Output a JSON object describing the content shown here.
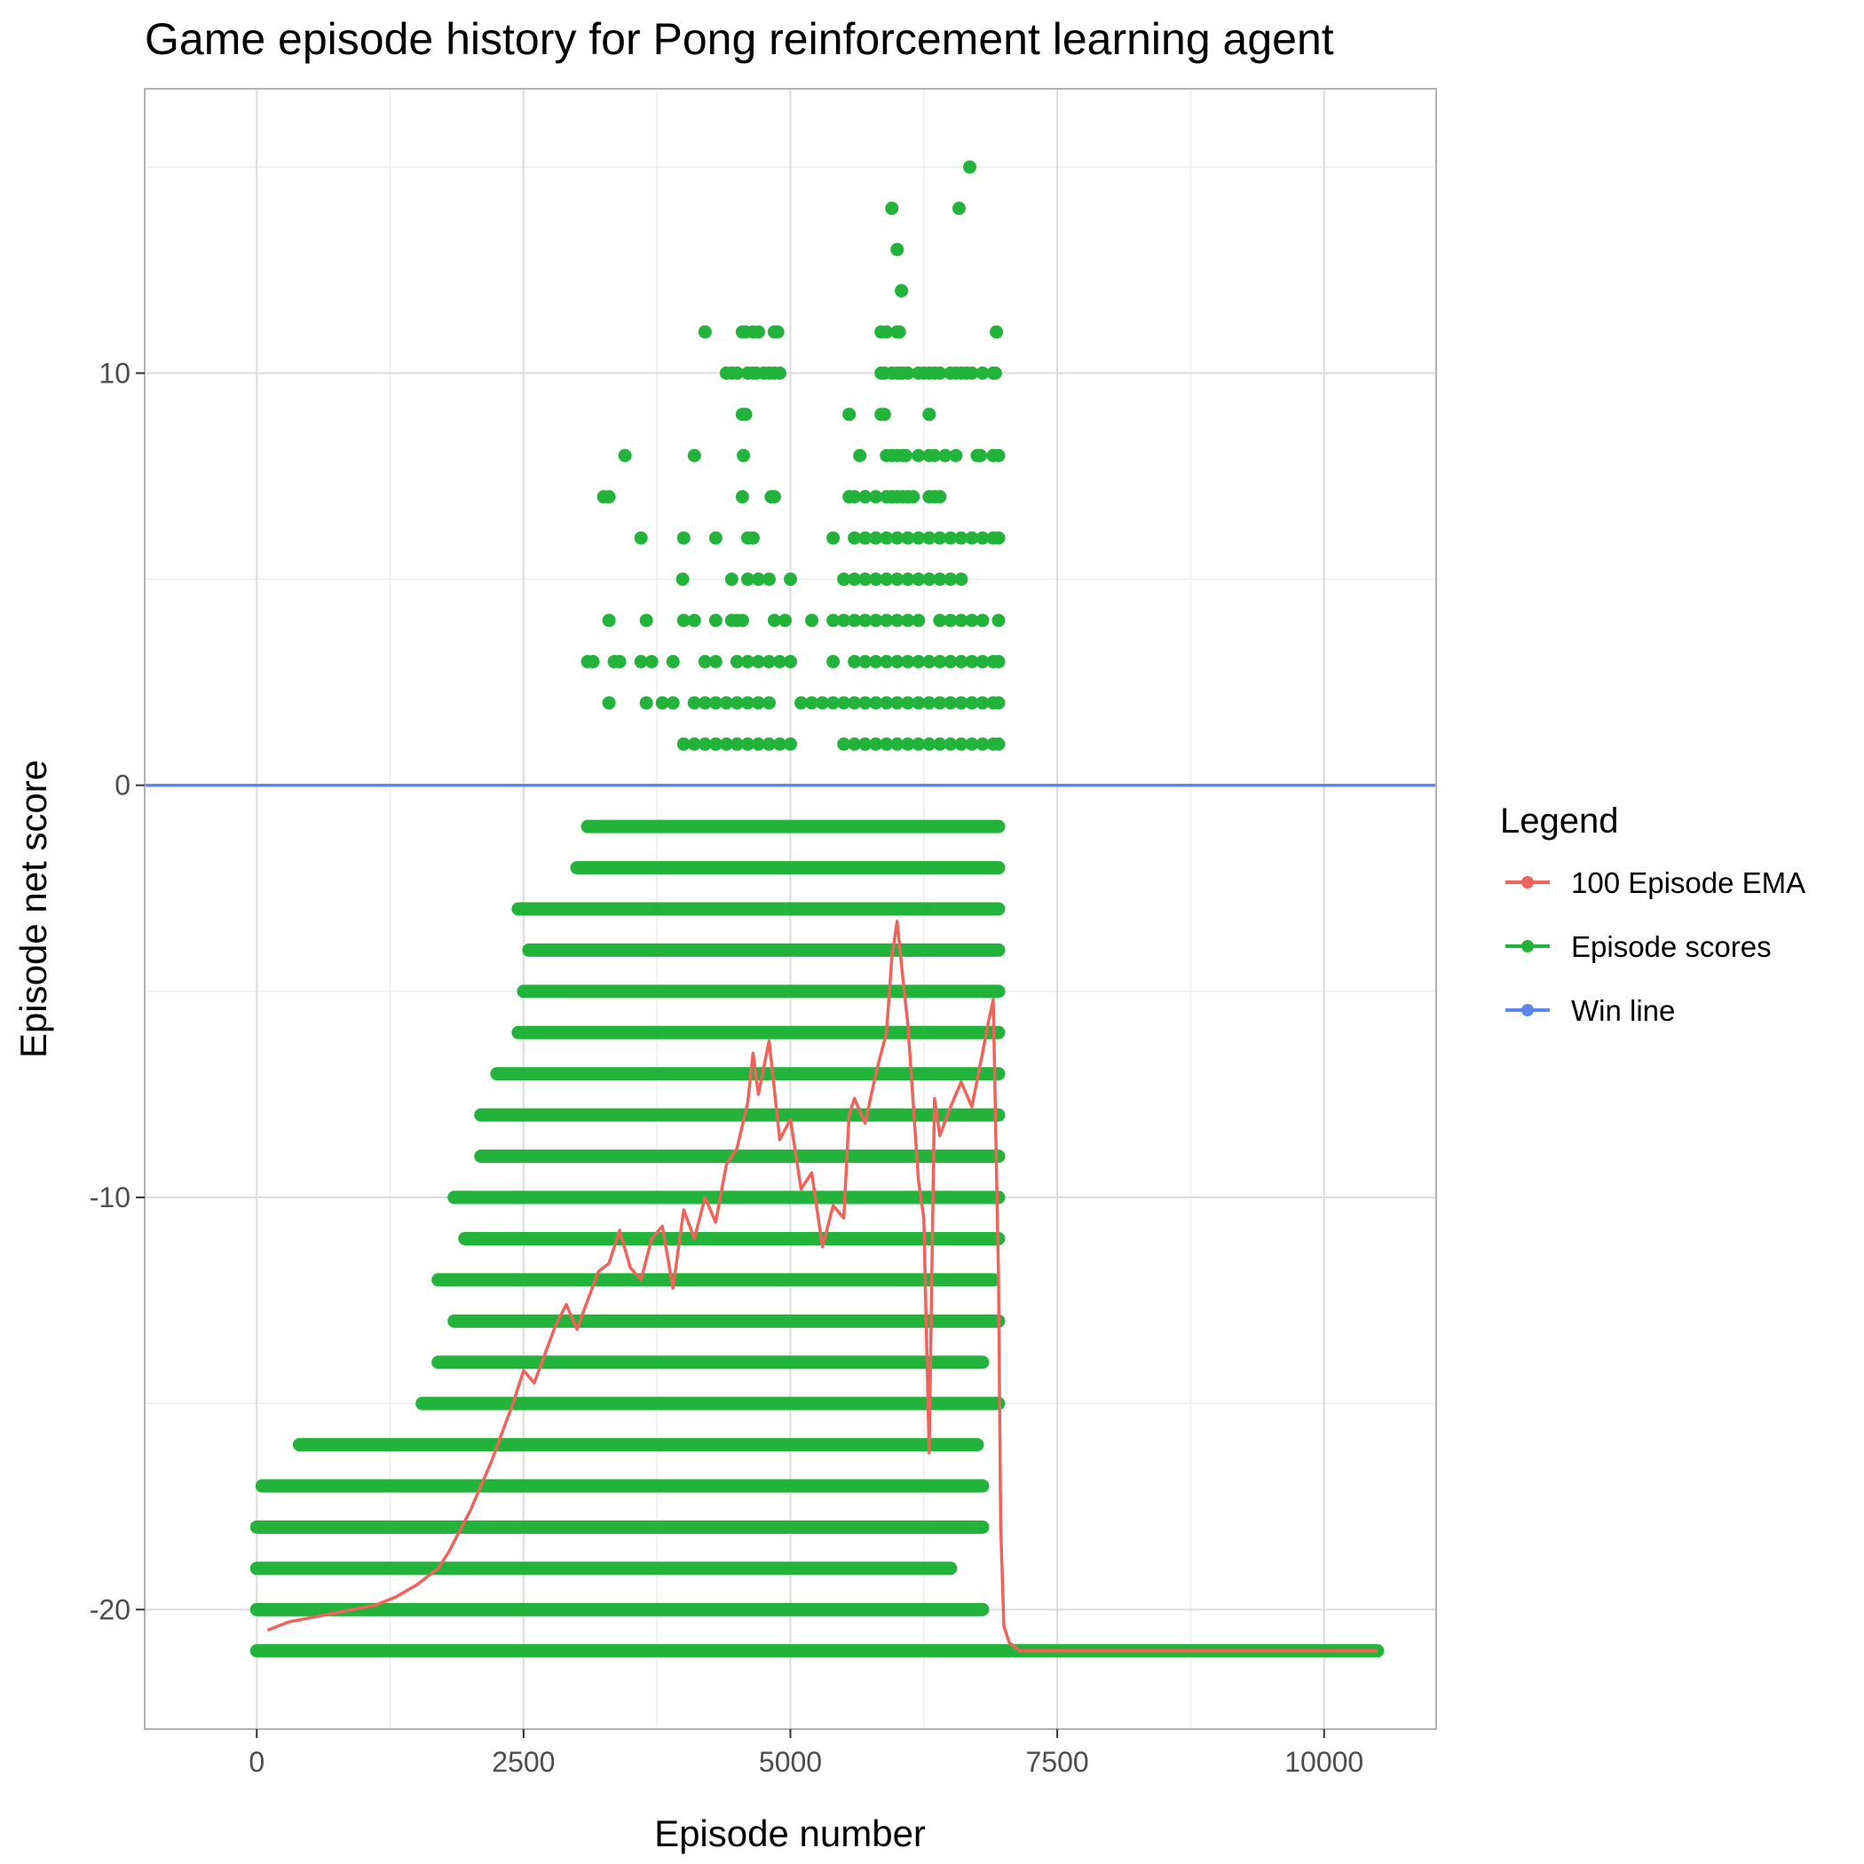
{
  "chart_data": {
    "type": "scatter",
    "title": "Game episode history for Pong reinforcement learning agent",
    "xlabel": "Episode number",
    "ylabel": "Episode net score",
    "xlim": [
      -1050,
      11050
    ],
    "ylim": [
      -22.9,
      16.9
    ],
    "x_ticks": [
      0,
      2500,
      5000,
      7500,
      10000
    ],
    "x_tick_labels": [
      "0",
      "2500",
      "5000",
      "7500",
      "10000"
    ],
    "y_ticks": [
      -20,
      -10,
      0,
      10
    ],
    "y_tick_labels": [
      "-20",
      "-10",
      "0",
      "10"
    ],
    "grid": true,
    "legend_position": "right",
    "legend_title": "Legend",
    "colors": {
      "ema": "#F0635B",
      "scores": "#21B33A",
      "win": "#5C86F0",
      "grid_major": "#dcdcdc",
      "grid_minor": "#ededed",
      "panel_border": "#b3b3b3"
    },
    "series": [
      {
        "name": "100 Episode EMA",
        "kind": "line",
        "x": [
          100,
          300,
          500,
          700,
          900,
          1100,
          1300,
          1500,
          1700,
          1800,
          1900,
          2000,
          2100,
          2200,
          2300,
          2400,
          2500,
          2600,
          2700,
          2800,
          2900,
          3000,
          3100,
          3200,
          3300,
          3400,
          3500,
          3600,
          3700,
          3800,
          3900,
          4000,
          4100,
          4200,
          4300,
          4400,
          4500,
          4600,
          4650,
          4700,
          4800,
          4900,
          5000,
          5100,
          5200,
          5300,
          5400,
          5500,
          5550,
          5600,
          5700,
          5800,
          5900,
          5950,
          6000,
          6050,
          6100,
          6150,
          6200,
          6250,
          6300,
          6350,
          6400,
          6500,
          6600,
          6700,
          6800,
          6850,
          6900,
          6950,
          6970,
          7000,
          7050,
          7100,
          7150,
          7200,
          7300,
          8000,
          9000,
          10000,
          10500
        ],
        "y": [
          -20.5,
          -20.3,
          -20.2,
          -20.1,
          -20.0,
          -19.9,
          -19.7,
          -19.4,
          -19.0,
          -18.6,
          -18.1,
          -17.6,
          -17.0,
          -16.4,
          -15.7,
          -15.0,
          -14.2,
          -14.5,
          -13.8,
          -13.1,
          -12.6,
          -13.2,
          -12.5,
          -11.8,
          -11.6,
          -10.8,
          -11.7,
          -12.0,
          -11.0,
          -10.7,
          -12.2,
          -10.3,
          -11.0,
          -10.0,
          -10.6,
          -9.2,
          -8.8,
          -7.7,
          -6.5,
          -7.5,
          -6.2,
          -8.6,
          -8.1,
          -9.8,
          -9.4,
          -11.2,
          -10.2,
          -10.5,
          -8.0,
          -7.6,
          -8.2,
          -7.0,
          -6.0,
          -4.2,
          -3.3,
          -4.6,
          -5.8,
          -7.7,
          -9.6,
          -10.5,
          -16.2,
          -7.6,
          -8.5,
          -7.8,
          -7.2,
          -7.8,
          -6.5,
          -5.8,
          -5.2,
          -12.0,
          -18.0,
          -20.4,
          -20.8,
          -20.9,
          -21.0,
          -21.0,
          -21.0,
          -21.0,
          -21.0,
          -21.0,
          -21.0
        ]
      },
      {
        "name": "Episode scores",
        "kind": "scatter",
        "summary_by_score": [
          {
            "y": 15,
            "x": [
              6680
            ]
          },
          {
            "y": 14,
            "x": [
              5950,
              6580
            ]
          },
          {
            "y": 13,
            "x": [
              6000
            ]
          },
          {
            "y": 12,
            "x": [
              6040
            ]
          },
          {
            "y": 11,
            "x": [
              4200,
              4550,
              4580,
              4650,
              4700,
              4850,
              4880,
              5850,
              5900,
              6000,
              6020,
              6930
            ]
          },
          {
            "y": 10,
            "x": [
              4400,
              4450,
              4500,
              4600,
              4650,
              4680,
              4750,
              4800,
              4850,
              4900,
              5850,
              5880,
              5950,
              6000,
              6020,
              6050,
              6100,
              6200,
              6250,
              6300,
              6350,
              6400,
              6500,
              6550,
              6600,
              6650,
              6700,
              6800,
              6900,
              6920
            ]
          },
          {
            "y": 9,
            "x": [
              4550,
              4580,
              5550,
              5850,
              5880,
              6300
            ]
          },
          {
            "y": 8,
            "x": [
              3450,
              4100,
              4560,
              5650,
              5900,
              5950,
              6000,
              6050,
              6080,
              6200,
              6300,
              6350,
              6450,
              6550,
              6750,
              6780,
              6900,
              6950
            ]
          },
          {
            "y": 7,
            "x": [
              3250,
              3300,
              4550,
              4820,
              4850,
              5550,
              5600,
              5700,
              5800,
              5900,
              5950,
              6000,
              6050,
              6100,
              6150,
              6300,
              6350,
              6400
            ]
          },
          {
            "y": 6,
            "x": [
              3600,
              4000,
              4300,
              4600,
              4650,
              5400,
              5600,
              5700,
              5800,
              5900,
              6000,
              6100,
              6200,
              6300,
              6400,
              6500,
              6600,
              6700,
              6800,
              6900,
              6950
            ]
          },
          {
            "y": 5,
            "x": [
              3990,
              4450,
              4600,
              4700,
              4800,
              5000,
              5500,
              5600,
              5700,
              5800,
              5900,
              6000,
              6100,
              6200,
              6300,
              6400,
              6500,
              6600
            ]
          },
          {
            "y": 4,
            "x": [
              3300,
              3650,
              4000,
              4100,
              4300,
              4450,
              4500,
              4550,
              4850,
              4950,
              5200,
              5400,
              5500,
              5600,
              5700,
              5800,
              5900,
              6000,
              6100,
              6200,
              6400,
              6500,
              6600,
              6700,
              6800,
              6950
            ]
          },
          {
            "y": 3,
            "x": [
              3100,
              3150,
              3350,
              3400,
              3600,
              3700,
              3900,
              4200,
              4300,
              4500,
              4600,
              4700,
              4800,
              4900,
              5000,
              5400,
              5600,
              5700,
              5800,
              5900,
              6000,
              6100,
              6200,
              6300,
              6400,
              6500,
              6600,
              6700,
              6800,
              6900,
              6950
            ]
          },
          {
            "y": 2,
            "x": [
              3300,
              3650,
              3800,
              3900,
              4100,
              4200,
              4300,
              4400,
              4500,
              4600,
              4700,
              4800,
              5100,
              5200,
              5300,
              5400,
              5500,
              5600,
              5700,
              5800,
              5900,
              6000,
              6100,
              6200,
              6300,
              6400,
              6500,
              6600,
              6700,
              6800,
              6900,
              6950
            ]
          },
          {
            "y": 1,
            "x": [
              4000,
              4100,
              4200,
              4300,
              4400,
              4500,
              4600,
              4700,
              4800,
              4900,
              5000,
              5500,
              5600,
              5700,
              5800,
              5900,
              6000,
              6100,
              6200,
              6300,
              6400,
              6500,
              6600,
              6700,
              6800,
              6900,
              6950
            ]
          }
        ],
        "dense_rows": [
          {
            "y": -1,
            "from": 3100,
            "to": 6950
          },
          {
            "y": -2,
            "from": 3000,
            "to": 6950
          },
          {
            "y": -3,
            "from": 2450,
            "to": 6950
          },
          {
            "y": -4,
            "from": 2550,
            "to": 6950
          },
          {
            "y": -5,
            "from": 2500,
            "to": 6950
          },
          {
            "y": -6,
            "from": 2450,
            "to": 6950
          },
          {
            "y": -7,
            "from": 2250,
            "to": 6950
          },
          {
            "y": -8,
            "from": 2100,
            "to": 6950
          },
          {
            "y": -9,
            "from": 2100,
            "to": 6950
          },
          {
            "y": -10,
            "from": 1850,
            "to": 6950
          },
          {
            "y": -11,
            "from": 1950,
            "to": 6950
          },
          {
            "y": -12,
            "from": 1700,
            "to": 6900
          },
          {
            "y": -13,
            "from": 1850,
            "to": 6950
          },
          {
            "y": -14,
            "from": 1700,
            "to": 6800
          },
          {
            "y": -15,
            "from": 1550,
            "to": 6950
          },
          {
            "y": -16,
            "from": 400,
            "to": 6750
          },
          {
            "y": -17,
            "from": 50,
            "to": 6800
          },
          {
            "y": -18,
            "from": 0,
            "to": 6800
          },
          {
            "y": -19,
            "from": 0,
            "to": 6500
          },
          {
            "y": -20,
            "from": 0,
            "to": 6800
          },
          {
            "y": -21,
            "from": 0,
            "to": 10500
          }
        ]
      },
      {
        "name": "Win line",
        "kind": "hline",
        "y": 0
      }
    ]
  }
}
